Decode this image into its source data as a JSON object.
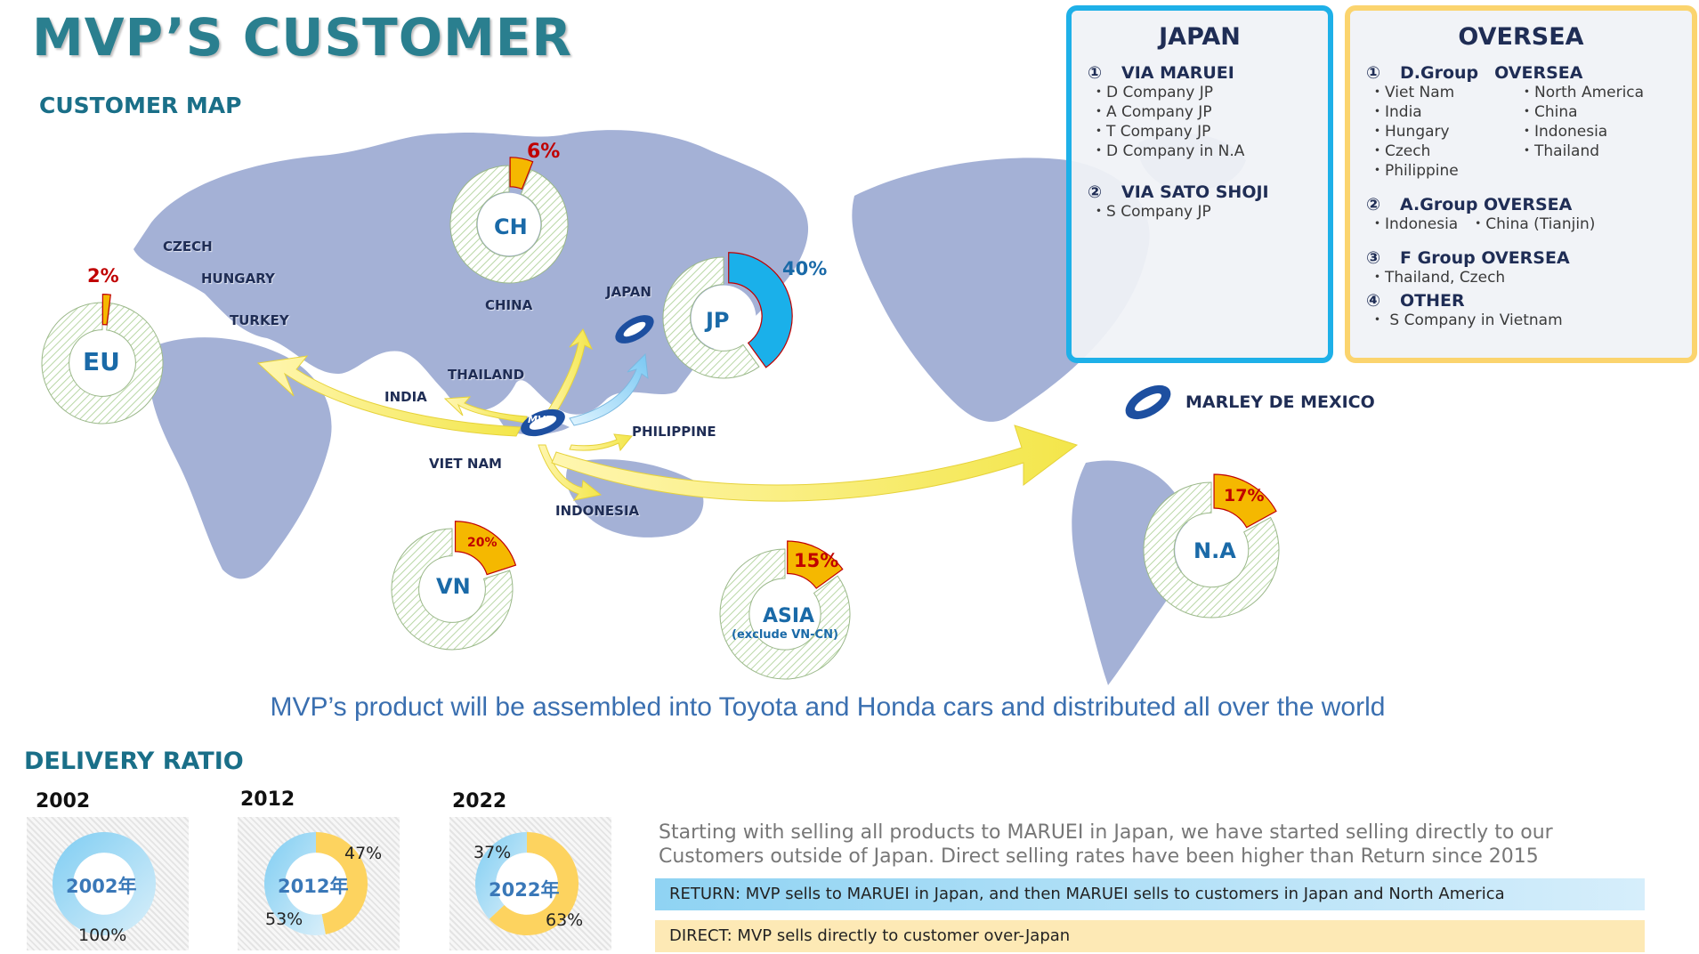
{
  "header": {
    "title": "MVP’S CUSTOMER",
    "map_title": "CUSTOMER MAP"
  },
  "colors": {
    "accent_teal": "#2a7f8f",
    "japan_border": "#1eb0e8",
    "oversea_border": "#fbd46e",
    "map_land": "#a4b1d6",
    "highlight_red": "#c00000",
    "jp_blue": "#1ab0ea"
  },
  "map_labels": {
    "czech": "CZECH",
    "hungary": "HUNGARY",
    "turkey": "TURKEY",
    "china": "CHINA",
    "japan": "JAPAN",
    "thailand": "THAILAND",
    "india": "INDIA",
    "philippine": "PHILIPPINE",
    "vietnam": "VIET NAM",
    "indonesia": "INDONESIA",
    "marley": "MARLEY DE MEXICO",
    "mvp_logo": "MVP"
  },
  "regions": {
    "eu": {
      "label": "EU",
      "share_text": "2%",
      "share": 0.02
    },
    "ch": {
      "label": "CH",
      "share_text": "6%",
      "share": 0.06
    },
    "jp": {
      "label": "JP",
      "share_text": "40%",
      "share": 0.4
    },
    "vn": {
      "label": "VN",
      "share_text": "20%",
      "share": 0.2
    },
    "asia": {
      "label": "ASIA",
      "sub": "(exclude VN-CN)",
      "share_text": "15%",
      "share": 0.15
    },
    "na": {
      "label": "N.A",
      "share_text": "17%",
      "share": 0.17
    }
  },
  "tagline": "MVP’s product will be assembled into Toyota and Honda cars and distributed all over the world",
  "japan_box": {
    "heading": "JAPAN",
    "sections": [
      {
        "num": "①",
        "title": "VIA MARUEI",
        "items": [
          "・D Company JP",
          "・A Company JP",
          "・T Company JP",
          "・D Company in N.A"
        ]
      },
      {
        "num": "②",
        "title": "VIA SATO SHOJI",
        "items": [
          "・S Company JP"
        ]
      }
    ]
  },
  "oversea_box": {
    "heading": "OVERSEA",
    "d_group": {
      "num": "①",
      "title": "D.Group",
      "title2": "OVERSEA",
      "left": [
        "・Viet Nam",
        "・India",
        "・Hungary",
        "・Czech",
        "・Philippine"
      ],
      "right": [
        "・North America",
        "・China",
        "・Indonesia",
        "・Thailand"
      ]
    },
    "a_group": {
      "num": "②",
      "title": "A.Group OVERSEA",
      "item1": "・Indonesia",
      "item2": "・China (Tianjin)"
    },
    "f_group": {
      "num": "③",
      "title": "F Group OVERSEA",
      "item": "・Thailand, Czech"
    },
    "other": {
      "num": "④",
      "title": "OTHER",
      "item": "・ S Company in Vietnam"
    }
  },
  "delivery": {
    "title": "DELIVERY RATIO",
    "years": [
      {
        "year": "2002",
        "center": "2002年",
        "return_pct": "100%",
        "direct_pct": "",
        "return": 1.0,
        "direct": 0.0
      },
      {
        "year": "2012",
        "center": "2012年",
        "return_pct": "53%",
        "direct_pct": "47%",
        "return": 0.53,
        "direct": 0.47
      },
      {
        "year": "2022",
        "center": "2022年",
        "return_pct": "37%",
        "direct_pct": "63%",
        "return": 0.37,
        "direct": 0.63
      }
    ],
    "description": "Starting with selling all products to MARUEI in Japan, we have started selling directly to our Customers outside of Japan. Direct selling rates have been higher than Return since 2015",
    "legend_return": "RETURN: MVP sells to MARUEI in Japan, and then MARUEI sells to customers in Japan and North America",
    "legend_direct": "DIRECT: MVP sells directly to customer over-Japan"
  }
}
